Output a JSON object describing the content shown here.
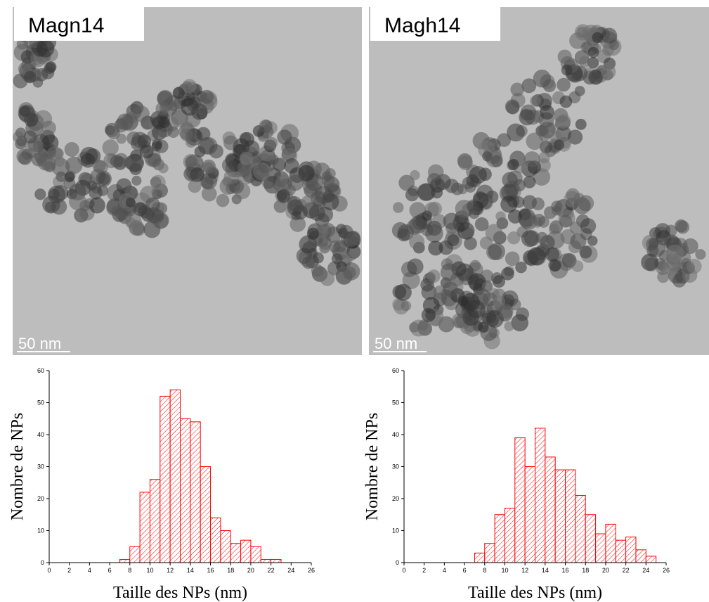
{
  "images": [
    {
      "label": "Magn14",
      "scale_bar": "50 nm"
    },
    {
      "label": "Magh14",
      "scale_bar": "50 nm"
    }
  ],
  "chart_data": [
    {
      "type": "histogram",
      "color": "#ff0000",
      "xlabel": "Taille des NPs (nm)",
      "ylabel": "Nombre de NPs",
      "bins": [
        7,
        8,
        9,
        10,
        11,
        12,
        13,
        14,
        15,
        16,
        17,
        18,
        19,
        20,
        21,
        22,
        23
      ],
      "counts": [
        1,
        5,
        22,
        26,
        52,
        54,
        45,
        44,
        30,
        14,
        10,
        6,
        7,
        5,
        1,
        1
      ],
      "xlim": [
        0,
        26
      ],
      "xticks": [
        0,
        2,
        4,
        6,
        8,
        10,
        12,
        14,
        16,
        18,
        20,
        22,
        24,
        26
      ],
      "ylim": [
        0,
        60
      ],
      "yticks": [
        0,
        10,
        20,
        30,
        40,
        50,
        60
      ]
    },
    {
      "type": "histogram",
      "color": "#ff0000",
      "xlabel": "Taille des NPs (nm)",
      "ylabel": "Nombre de NPs",
      "bins": [
        7,
        8,
        9,
        10,
        11,
        12,
        13,
        14,
        15,
        16,
        17,
        18,
        19,
        20,
        21,
        22,
        23,
        24,
        25
      ],
      "counts": [
        3,
        6,
        15,
        17,
        39,
        30,
        42,
        33,
        29,
        29,
        21,
        15,
        9,
        12,
        7,
        8,
        4,
        2
      ],
      "xlim": [
        0,
        26
      ],
      "xticks": [
        0,
        2,
        4,
        6,
        8,
        10,
        12,
        14,
        16,
        18,
        20,
        22,
        24,
        26
      ],
      "ylim": [
        0,
        60
      ],
      "yticks": [
        0,
        10,
        20,
        30,
        40,
        50,
        60
      ]
    }
  ]
}
